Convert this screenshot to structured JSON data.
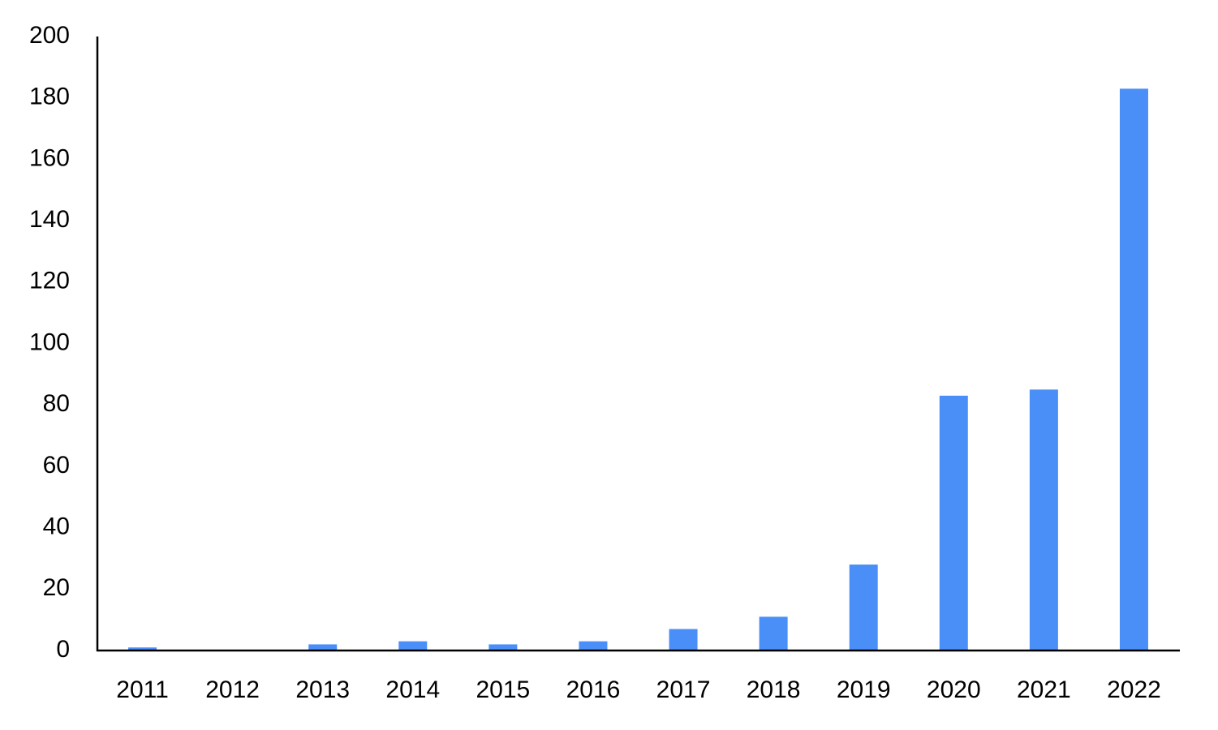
{
  "chart_data": {
    "type": "bar",
    "categories": [
      "2011",
      "2012",
      "2013",
      "2014",
      "2015",
      "2016",
      "2017",
      "2018",
      "2019",
      "2020",
      "2021",
      "2022"
    ],
    "values": [
      1,
      0,
      2,
      3,
      2,
      3,
      7,
      11,
      28,
      83,
      85,
      183
    ],
    "color": "#4a8ff8",
    "ylim": [
      0,
      200
    ],
    "yticks": [
      0,
      20,
      40,
      60,
      80,
      100,
      120,
      140,
      160,
      180,
      200
    ],
    "grid": false
  }
}
